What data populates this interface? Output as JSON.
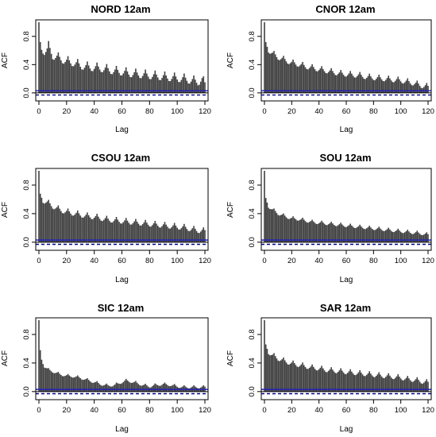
{
  "colors": {
    "bar": "#404040",
    "ci_solid": "#1f1fbf",
    "ci_dash": "#00008b",
    "frame": "#000000"
  },
  "chart_data": [
    {
      "type": "bar",
      "title": "NORD 12am",
      "xlabel": "Lag",
      "ylabel": "ACF",
      "xlim": [
        0,
        120
      ],
      "ylim": [
        -0.08,
        1.0
      ],
      "xticks": [
        0,
        20,
        40,
        60,
        80,
        100,
        120
      ],
      "yticks": [
        0.0,
        0.4,
        0.8
      ],
      "ytick_labels": [
        "0.0",
        "0.4",
        "0.8"
      ],
      "ci": [
        0.03,
        -0.03
      ],
      "anchors": [
        [
          0,
          1.0
        ],
        [
          1,
          0.72
        ],
        [
          2,
          0.62
        ],
        [
          4,
          0.58
        ],
        [
          6,
          0.6
        ],
        [
          7,
          0.65
        ],
        [
          10,
          0.52
        ],
        [
          15,
          0.48
        ],
        [
          20,
          0.44
        ],
        [
          25,
          0.42
        ],
        [
          30,
          0.38
        ],
        [
          35,
          0.36
        ],
        [
          40,
          0.35
        ],
        [
          45,
          0.34
        ],
        [
          50,
          0.32
        ],
        [
          55,
          0.3
        ],
        [
          60,
          0.29
        ],
        [
          65,
          0.27
        ],
        [
          70,
          0.26
        ],
        [
          75,
          0.25
        ],
        [
          80,
          0.24
        ],
        [
          85,
          0.23
        ],
        [
          90,
          0.22
        ],
        [
          95,
          0.21
        ],
        [
          100,
          0.2
        ],
        [
          105,
          0.19
        ],
        [
          110,
          0.17
        ],
        [
          115,
          0.15
        ],
        [
          118,
          0.18
        ],
        [
          120,
          0.12
        ]
      ],
      "period": 7,
      "season_amp": 0.06
    },
    {
      "type": "bar",
      "title": "CNOR 12am",
      "xlabel": "Lag",
      "ylabel": "ACF",
      "xlim": [
        0,
        120
      ],
      "ylim": [
        -0.08,
        1.0
      ],
      "xticks": [
        0,
        20,
        40,
        60,
        80,
        100,
        120
      ],
      "yticks": [
        0.0,
        0.4,
        0.8
      ],
      "ytick_labels": [
        "0.0",
        "0.4",
        "0.8"
      ],
      "ci": [
        0.03,
        -0.03
      ],
      "anchors": [
        [
          0,
          1.0
        ],
        [
          1,
          0.72
        ],
        [
          3,
          0.6
        ],
        [
          6,
          0.55
        ],
        [
          10,
          0.5
        ],
        [
          15,
          0.46
        ],
        [
          20,
          0.42
        ],
        [
          25,
          0.4
        ],
        [
          30,
          0.37
        ],
        [
          35,
          0.35
        ],
        [
          40,
          0.33
        ],
        [
          45,
          0.31
        ],
        [
          50,
          0.29
        ],
        [
          55,
          0.27
        ],
        [
          60,
          0.26
        ],
        [
          65,
          0.25
        ],
        [
          70,
          0.24
        ],
        [
          75,
          0.22
        ],
        [
          80,
          0.21
        ],
        [
          85,
          0.2
        ],
        [
          90,
          0.19
        ],
        [
          95,
          0.18
        ],
        [
          100,
          0.17
        ],
        [
          105,
          0.15
        ],
        [
          110,
          0.13
        ],
        [
          115,
          0.1
        ],
        [
          120,
          0.08
        ]
      ],
      "period": 7,
      "season_amp": 0.04
    },
    {
      "type": "bar",
      "title": "CSOU 12am",
      "xlabel": "Lag",
      "ylabel": "ACF",
      "xlim": [
        0,
        120
      ],
      "ylim": [
        -0.08,
        1.0
      ],
      "xticks": [
        0,
        20,
        40,
        60,
        80,
        100,
        120
      ],
      "yticks": [
        0.0,
        0.4,
        0.8
      ],
      "ytick_labels": [
        "0.0",
        "0.4",
        "0.8"
      ],
      "ci": [
        0.03,
        -0.03
      ],
      "anchors": [
        [
          0,
          1.0
        ],
        [
          1,
          0.68
        ],
        [
          3,
          0.58
        ],
        [
          6,
          0.55
        ],
        [
          10,
          0.5
        ],
        [
          15,
          0.45
        ],
        [
          20,
          0.42
        ],
        [
          25,
          0.4
        ],
        [
          30,
          0.38
        ],
        [
          35,
          0.36
        ],
        [
          40,
          0.35
        ],
        [
          45,
          0.33
        ],
        [
          50,
          0.31
        ],
        [
          55,
          0.3
        ],
        [
          60,
          0.29
        ],
        [
          65,
          0.28
        ],
        [
          70,
          0.27
        ],
        [
          75,
          0.26
        ],
        [
          80,
          0.25
        ],
        [
          85,
          0.24
        ],
        [
          90,
          0.23
        ],
        [
          95,
          0.22
        ],
        [
          100,
          0.21
        ],
        [
          105,
          0.2
        ],
        [
          110,
          0.18
        ],
        [
          115,
          0.16
        ],
        [
          120,
          0.15
        ]
      ],
      "period": 7,
      "season_amp": 0.04
    },
    {
      "type": "bar",
      "title": "SOU 12am",
      "xlabel": "Lag",
      "ylabel": "ACF",
      "xlim": [
        0,
        120
      ],
      "ylim": [
        -0.08,
        1.0
      ],
      "xticks": [
        0,
        20,
        40,
        60,
        80,
        100,
        120
      ],
      "yticks": [
        0.0,
        0.4,
        0.8
      ],
      "ytick_labels": [
        "0.0",
        "0.4",
        "0.8"
      ],
      "ci": [
        0.03,
        -0.03
      ],
      "anchors": [
        [
          0,
          1.0
        ],
        [
          1,
          0.62
        ],
        [
          3,
          0.5
        ],
        [
          6,
          0.45
        ],
        [
          10,
          0.4
        ],
        [
          15,
          0.36
        ],
        [
          20,
          0.33
        ],
        [
          25,
          0.32
        ],
        [
          30,
          0.3
        ],
        [
          35,
          0.28
        ],
        [
          40,
          0.27
        ],
        [
          45,
          0.26
        ],
        [
          50,
          0.25
        ],
        [
          55,
          0.24
        ],
        [
          60,
          0.23
        ],
        [
          65,
          0.22
        ],
        [
          70,
          0.21
        ],
        [
          75,
          0.2
        ],
        [
          80,
          0.19
        ],
        [
          85,
          0.18
        ],
        [
          90,
          0.17
        ],
        [
          95,
          0.16
        ],
        [
          100,
          0.15
        ],
        [
          105,
          0.14
        ],
        [
          110,
          0.13
        ],
        [
          115,
          0.12
        ],
        [
          120,
          0.1
        ]
      ],
      "period": 7,
      "season_amp": 0.025
    },
    {
      "type": "bar",
      "title": "SIC 12am",
      "xlabel": "Lag",
      "ylabel": "ACF",
      "xlim": [
        0,
        120
      ],
      "ylim": [
        -0.08,
        1.0
      ],
      "xticks": [
        0,
        20,
        40,
        60,
        80,
        100,
        120
      ],
      "yticks": [
        0.0,
        0.4,
        0.8
      ],
      "ytick_labels": [
        "0.0",
        "0.4",
        "0.8"
      ],
      "ci": [
        0.03,
        -0.03
      ],
      "anchors": [
        [
          0,
          1.0
        ],
        [
          1,
          0.58
        ],
        [
          2,
          0.45
        ],
        [
          4,
          0.35
        ],
        [
          7,
          0.3
        ],
        [
          10,
          0.28
        ],
        [
          15,
          0.24
        ],
        [
          20,
          0.22
        ],
        [
          25,
          0.21
        ],
        [
          30,
          0.19
        ],
        [
          35,
          0.16
        ],
        [
          40,
          0.13
        ],
        [
          45,
          0.1
        ],
        [
          50,
          0.08
        ],
        [
          55,
          0.09
        ],
        [
          60,
          0.13
        ],
        [
          63,
          0.15
        ],
        [
          66,
          0.14
        ],
        [
          70,
          0.12
        ],
        [
          75,
          0.09
        ],
        [
          80,
          0.07
        ],
        [
          85,
          0.09
        ],
        [
          90,
          0.1
        ],
        [
          95,
          0.09
        ],
        [
          100,
          0.07
        ],
        [
          105,
          0.06
        ],
        [
          110,
          0.06
        ],
        [
          115,
          0.06
        ],
        [
          120,
          0.06
        ]
      ],
      "period": 7,
      "season_amp": 0.02
    },
    {
      "type": "bar",
      "title": "SAR 12am",
      "xlabel": "Lag",
      "ylabel": "ACF",
      "xlim": [
        0,
        120
      ],
      "ylim": [
        -0.08,
        1.0
      ],
      "xticks": [
        0,
        20,
        40,
        60,
        80,
        100,
        120
      ],
      "yticks": [
        0.0,
        0.4,
        0.8
      ],
      "ytick_labels": [
        "0.0",
        "0.4",
        "0.8"
      ],
      "ci": [
        0.03,
        -0.03
      ],
      "anchors": [
        [
          0,
          1.0
        ],
        [
          1,
          0.66
        ],
        [
          3,
          0.55
        ],
        [
          6,
          0.5
        ],
        [
          10,
          0.46
        ],
        [
          15,
          0.42
        ],
        [
          20,
          0.39
        ],
        [
          25,
          0.37
        ],
        [
          30,
          0.35
        ],
        [
          35,
          0.33
        ],
        [
          40,
          0.32
        ],
        [
          45,
          0.3
        ],
        [
          50,
          0.29
        ],
        [
          55,
          0.28
        ],
        [
          60,
          0.27
        ],
        [
          65,
          0.26
        ],
        [
          70,
          0.25
        ],
        [
          75,
          0.24
        ],
        [
          80,
          0.23
        ],
        [
          85,
          0.22
        ],
        [
          90,
          0.21
        ],
        [
          95,
          0.2
        ],
        [
          100,
          0.19
        ],
        [
          105,
          0.17
        ],
        [
          110,
          0.16
        ],
        [
          115,
          0.14
        ],
        [
          120,
          0.12
        ]
      ],
      "period": 7,
      "season_amp": 0.035
    }
  ]
}
